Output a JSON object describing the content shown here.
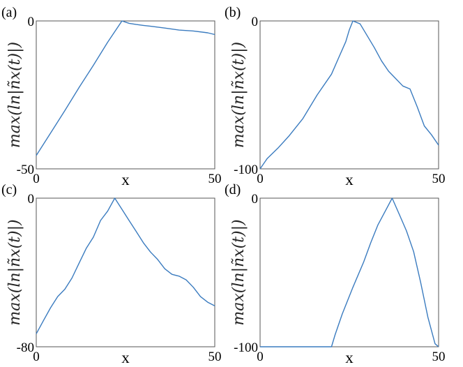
{
  "chart_data": [
    {
      "type": "line",
      "panel_label": "(a)",
      "xlabel": "x",
      "ylabel": "max(ln|ñx(t)|)",
      "xlim": [
        0,
        50
      ],
      "ylim": [
        -50,
        0
      ],
      "xticks": [
        "0",
        "50"
      ],
      "yticks": [
        "-50",
        "0"
      ],
      "color": "#3a7bbf",
      "series": [
        {
          "x": [
            0,
            4,
            8,
            12,
            16,
            20,
            24,
            26,
            28,
            30,
            32,
            36,
            40,
            44,
            48,
            50
          ],
          "y": [
            -45.5,
            -37.9,
            -30.3,
            -22.5,
            -15.0,
            -7.2,
            0.0,
            -0.8,
            -1.2,
            -1.5,
            -1.8,
            -2.4,
            -3.1,
            -3.4,
            -4.0,
            -4.6
          ]
        }
      ]
    },
    {
      "type": "line",
      "panel_label": "(b)",
      "xlabel": "x",
      "ylabel": "max(ln|ñx(t)|)",
      "xlim": [
        0,
        50
      ],
      "ylim": [
        -100,
        0
      ],
      "xticks": [
        "0",
        "50"
      ],
      "yticks": [
        "-100",
        "0"
      ],
      "color": "#3a7bbf",
      "series": [
        {
          "x": [
            0,
            2,
            5,
            8,
            12,
            16,
            20,
            22,
            24,
            25,
            26,
            28,
            30,
            32,
            34,
            36,
            38,
            40,
            42,
            44,
            46,
            48,
            50
          ],
          "y": [
            -100,
            -93,
            -86,
            -78,
            -66,
            -50,
            -36,
            -25,
            -14,
            -6,
            0,
            -2,
            -10,
            -18,
            -27,
            -34,
            -39,
            -44,
            -46,
            -58,
            -71,
            -77,
            -84
          ]
        }
      ]
    },
    {
      "type": "line",
      "panel_label": "(c)",
      "xlabel": "x",
      "ylabel": "max(ln|ñx(t)|)",
      "xlim": [
        0,
        50
      ],
      "ylim": [
        -80,
        0
      ],
      "xticks": [
        "0",
        "50"
      ],
      "yticks": [
        "-80",
        "0"
      ],
      "color": "#3a7bbf",
      "series": [
        {
          "x": [
            0,
            2,
            4,
            6,
            8,
            10,
            12,
            14,
            16,
            18,
            20,
            22,
            24,
            26,
            28,
            30,
            32,
            34,
            36,
            38,
            40,
            42,
            44,
            46,
            48,
            50
          ],
          "y": [
            -73,
            -66,
            -59,
            -53,
            -49,
            -43,
            -35,
            -27,
            -21,
            -12,
            -7,
            0,
            -6,
            -12,
            -18,
            -24,
            -29,
            -33,
            -38,
            -41,
            -42,
            -44,
            -48,
            -53,
            -56,
            -58
          ]
        }
      ]
    },
    {
      "type": "line",
      "panel_label": "(d)",
      "xlabel": "x",
      "ylabel": "max(ln|ñx(t)|)",
      "xlim": [
        0,
        50
      ],
      "ylim": [
        -100,
        0
      ],
      "xticks": [
        "0",
        "50"
      ],
      "yticks": [
        "-100",
        "0"
      ],
      "color": "#3a7bbf",
      "series": [
        {
          "x": [
            0,
            10,
            20,
            21,
            23,
            26,
            29,
            31,
            33,
            35,
            37,
            39,
            41,
            43,
            45,
            47,
            49,
            50
          ],
          "y": [
            -100,
            -100,
            -100,
            -92,
            -78,
            -60,
            -43,
            -30,
            -18,
            -9,
            0,
            -11,
            -22,
            -36,
            -57,
            -80,
            -98,
            -100
          ]
        }
      ]
    }
  ]
}
